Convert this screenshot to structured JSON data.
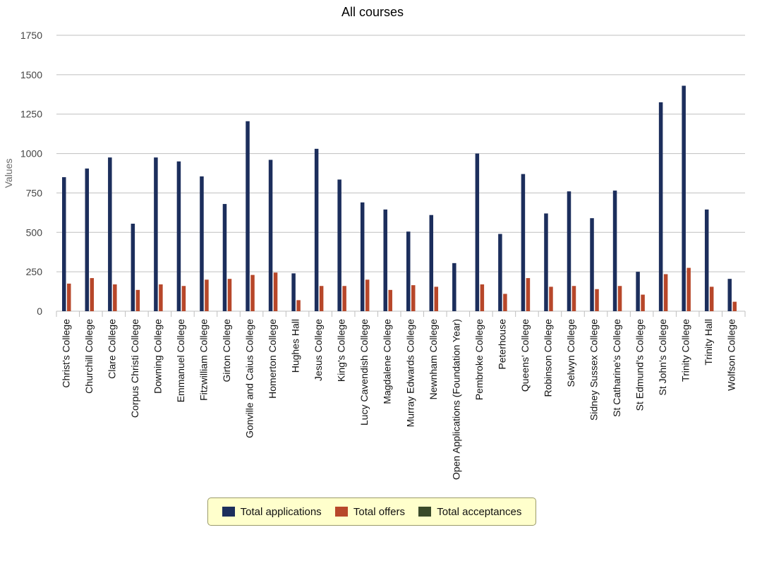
{
  "chart_data": {
    "type": "bar",
    "title": "All courses",
    "xlabel": "",
    "ylabel": "Values",
    "ylim": [
      0,
      1750
    ],
    "yticks": [
      0,
      250,
      500,
      750,
      1000,
      1250,
      1500,
      1750
    ],
    "grid": true,
    "legend_position": "bottom-center",
    "categories": [
      "Christ's College",
      "Churchill College",
      "Clare College",
      "Corpus Christi College",
      "Downing College",
      "Emmanuel College",
      "Fitzwilliam College",
      "Girton College",
      "Gonville and Caius College",
      "Homerton College",
      "Hughes Hall",
      "Jesus College",
      "King's College",
      "Lucy Cavendish College",
      "Magdalene College",
      "Murray Edwards College",
      "Newnham College",
      "Open Applications (Foundation Year)",
      "Pembroke College",
      "Peterhouse",
      "Queens' College",
      "Robinson College",
      "Selwyn College",
      "Sidney Sussex College",
      "St Catharine's College",
      "St Edmund's College",
      "St John's College",
      "Trinity College",
      "Trinity Hall",
      "Wolfson College"
    ],
    "series": [
      {
        "name": "Total applications",
        "color": "#1c2e5c",
        "values": [
          850,
          905,
          975,
          555,
          975,
          950,
          855,
          680,
          1205,
          960,
          240,
          1030,
          835,
          690,
          645,
          505,
          610,
          305,
          1000,
          490,
          870,
          620,
          760,
          590,
          765,
          250,
          1325,
          1430,
          645,
          205
        ]
      },
      {
        "name": "Total offers",
        "color": "#b7472a",
        "values": [
          175,
          210,
          170,
          135,
          170,
          160,
          200,
          205,
          230,
          245,
          70,
          160,
          160,
          200,
          135,
          165,
          155,
          0,
          170,
          110,
          210,
          155,
          160,
          140,
          160,
          105,
          235,
          275,
          155,
          60
        ]
      },
      {
        "name": "Total acceptances",
        "color": "#3a4a2a",
        "values": [
          0,
          0,
          0,
          0,
          0,
          0,
          0,
          0,
          0,
          0,
          0,
          0,
          0,
          0,
          0,
          0,
          0,
          0,
          0,
          0,
          0,
          0,
          0,
          0,
          0,
          0,
          0,
          0,
          0,
          0
        ]
      }
    ]
  },
  "legend": {
    "items": [
      {
        "label": "Total applications",
        "color": "#1c2e5c"
      },
      {
        "label": "Total offers",
        "color": "#b7472a"
      },
      {
        "label": "Total acceptances",
        "color": "#3a4a2a"
      }
    ]
  }
}
